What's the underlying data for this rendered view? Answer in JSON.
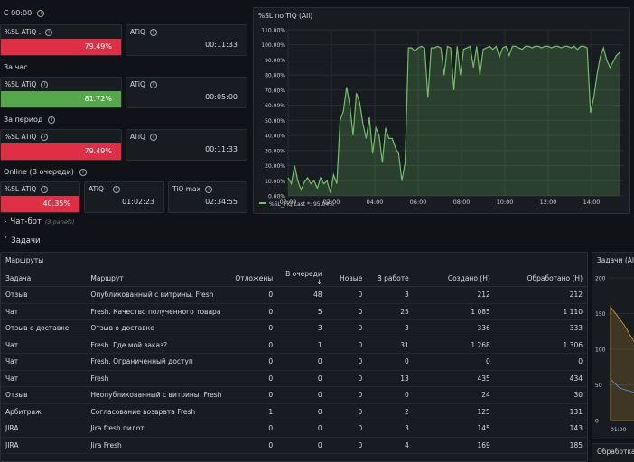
{
  "sections": {
    "since_midnight": "С 00:00",
    "last_hour": "За час",
    "period": "За период",
    "online": "Online (В очереди)"
  },
  "stats": {
    "s1_label": "%SL ATiQ .",
    "s1_value": "79.49%",
    "s2_label": "ATiQ",
    "s2_value": "00:11:33",
    "h1_label": "%SL ATiQ",
    "h1_value": "81.72%",
    "h2_label": "ATiQ",
    "h2_value": "00:05:00",
    "p1_label": "%SL ATiQ",
    "p1_value": "79.49%",
    "p2_label": "ATiQ",
    "p2_value": "00:11:33",
    "o1_label": "%SL ATiQ",
    "o1_value": "40.35%",
    "o2_label": "ATiQ .",
    "o2_value": "01:02:23",
    "o3_label": "TiQ max",
    "o3_value": "02:34:55"
  },
  "rows": {
    "chatbot": "Чат-бот",
    "chatbot_hint": "(3 panels)",
    "tasks": "Задачи"
  },
  "routes_panel": {
    "title": "Маршруты",
    "headers": [
      "Задача",
      "Маршрут",
      "Отложены",
      "В очереди",
      "Новые",
      "В работе",
      "Создано (Н)",
      "Обработано (Н)"
    ],
    "rows": [
      [
        "Отзыв",
        "Опубликованный с витрины. Fresh",
        "0",
        "48",
        "0",
        "3",
        "212",
        "212"
      ],
      [
        "Чат",
        "Fresh. Качество полученного товара",
        "0",
        "5",
        "0",
        "25",
        "1 085",
        "1 110"
      ],
      [
        "Отзыв о доставке",
        "Отзыв о доставке",
        "0",
        "3",
        "0",
        "3",
        "336",
        "333"
      ],
      [
        "Чат",
        "Fresh. Где мой заказ?",
        "0",
        "1",
        "0",
        "31",
        "1 268",
        "1 306"
      ],
      [
        "Чат",
        "Fresh. Ограниченный доступ",
        "0",
        "0",
        "0",
        "0",
        "0",
        "0"
      ],
      [
        "Чат",
        "Fresh",
        "0",
        "0",
        "0",
        "13",
        "435",
        "434"
      ],
      [
        "Отзыв",
        "Неопубликованный с витрины. Fresh",
        "0",
        "0",
        "0",
        "0",
        "24",
        "30"
      ],
      [
        "Арбитраж",
        "Согласование возврата Fresh",
        "1",
        "0",
        "0",
        "2",
        "125",
        "131"
      ],
      [
        "JIRA",
        "Jira fresh пилот",
        "0",
        "0",
        "0",
        "3",
        "145",
        "143"
      ],
      [
        "JIRA",
        "Jira Fresh",
        "0",
        "0",
        "0",
        "4",
        "169",
        "185"
      ]
    ]
  },
  "side_panel": {
    "title": "Задачи (All)",
    "yticks": [
      "200",
      "150",
      "100",
      "50",
      "0"
    ],
    "xtick": "01:00",
    "bottom_title": "Обработка"
  },
  "colors": {
    "accent_red": "#e02f44",
    "accent_green": "#56a64b",
    "series": "#73bf69"
  },
  "chart_data": {
    "type": "area",
    "title": "%SL по TiQ (All)",
    "x_ticks": [
      "00:00",
      "02:00",
      "04:00",
      "06:00",
      "08:00",
      "10:00",
      "12:00",
      "14:00"
    ],
    "y_ticks": [
      "110.00%",
      "100.00%",
      "90.00%",
      "80.00%",
      "70.00%",
      "60.00%",
      "50.00%",
      "40.00%",
      "30.00%",
      "20.00%",
      "10.00%",
      "0.00%"
    ],
    "ylim": [
      0,
      110
    ],
    "xlim": [
      0,
      15.5
    ],
    "legend": "%SL_TiQ  Last *: 95.04%",
    "legend_position": "bottom-left",
    "series": [
      {
        "name": "%SL_TiQ",
        "x": [
          0,
          0.15,
          0.3,
          0.45,
          0.6,
          0.75,
          0.9,
          1.05,
          1.2,
          1.35,
          1.5,
          1.65,
          1.8,
          1.95,
          2.1,
          2.25,
          2.4,
          2.55,
          2.7,
          2.85,
          3.0,
          3.15,
          3.3,
          3.45,
          3.6,
          3.75,
          3.9,
          4.05,
          4.2,
          4.35,
          4.5,
          4.65,
          4.8,
          4.95,
          5.1,
          5.25,
          5.4,
          5.55,
          5.7,
          5.85,
          6.0,
          6.15,
          6.3,
          6.45,
          6.6,
          6.75,
          6.9,
          7.05,
          7.2,
          7.35,
          7.5,
          7.65,
          7.8,
          7.95,
          8.1,
          8.25,
          8.4,
          8.55,
          8.7,
          8.85,
          9.0,
          9.15,
          9.3,
          9.45,
          9.6,
          9.75,
          9.9,
          10.05,
          10.2,
          10.35,
          10.5,
          10.65,
          10.8,
          10.95,
          11.1,
          11.25,
          11.4,
          11.55,
          11.7,
          11.85,
          12.0,
          12.15,
          12.3,
          12.45,
          12.6,
          12.75,
          12.9,
          13.05,
          13.2,
          13.35,
          13.5,
          13.65,
          13.8,
          13.95,
          14.1,
          14.25,
          14.4,
          14.55,
          14.7,
          14.85,
          15.0,
          15.15,
          15.3
        ],
        "values": [
          12,
          8,
          20,
          10,
          4,
          9,
          12,
          8,
          10,
          5,
          12,
          8,
          10,
          2,
          14,
          8,
          50,
          56,
          72,
          60,
          40,
          68,
          62,
          48,
          38,
          52,
          28,
          45,
          40,
          22,
          45,
          38,
          38,
          32,
          28,
          10,
          22,
          98,
          98,
          96,
          98,
          99,
          98,
          65,
          98,
          98,
          99,
          98,
          80,
          99,
          98,
          70,
          99,
          80,
          97,
          98,
          99,
          85,
          99,
          80,
          97,
          98,
          99,
          97,
          99,
          92,
          98,
          99,
          93,
          99,
          99,
          98,
          97,
          99,
          99,
          98,
          99,
          99,
          98,
          99,
          99,
          98,
          99,
          99,
          98,
          99,
          99,
          98,
          99,
          97,
          99,
          99,
          98,
          55,
          65,
          80,
          92,
          98,
          90,
          85,
          89,
          93,
          95
        ]
      }
    ]
  }
}
